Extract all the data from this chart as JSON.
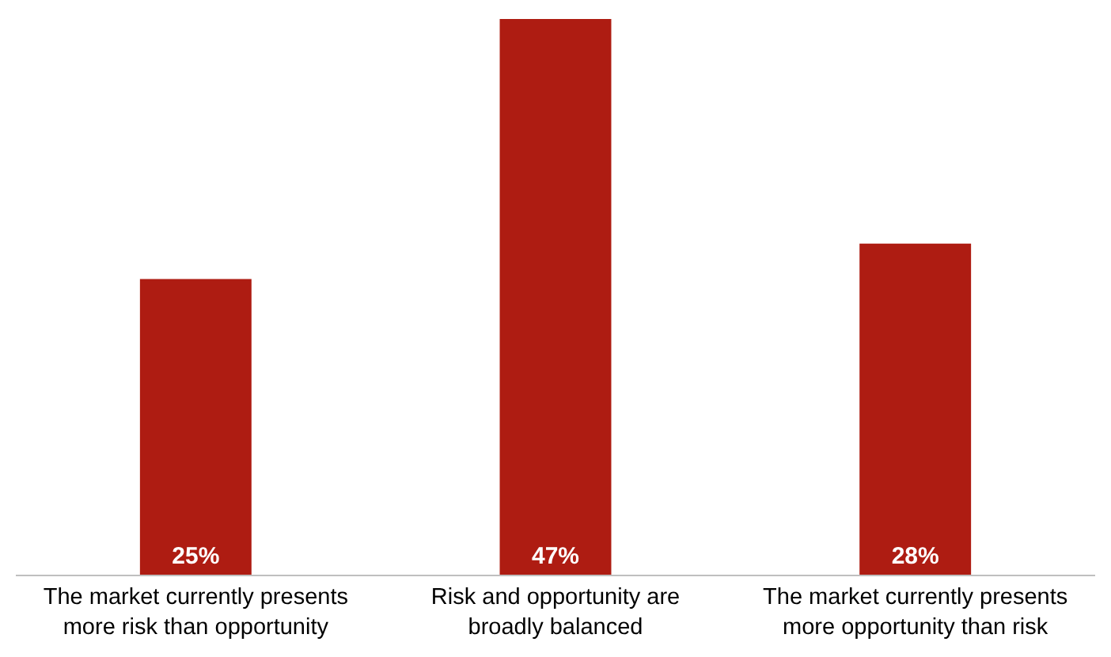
{
  "chart_data": {
    "type": "bar",
    "categories": [
      "The market currently presents more risk than opportunity",
      "Risk and opportunity are broadly balanced",
      "The market currently presents more opportunity than risk"
    ],
    "values": [
      25,
      47,
      28
    ],
    "color": "#ae1c12",
    "value_labels": [
      "25%",
      "47%",
      "28%"
    ],
    "grid": false
  }
}
